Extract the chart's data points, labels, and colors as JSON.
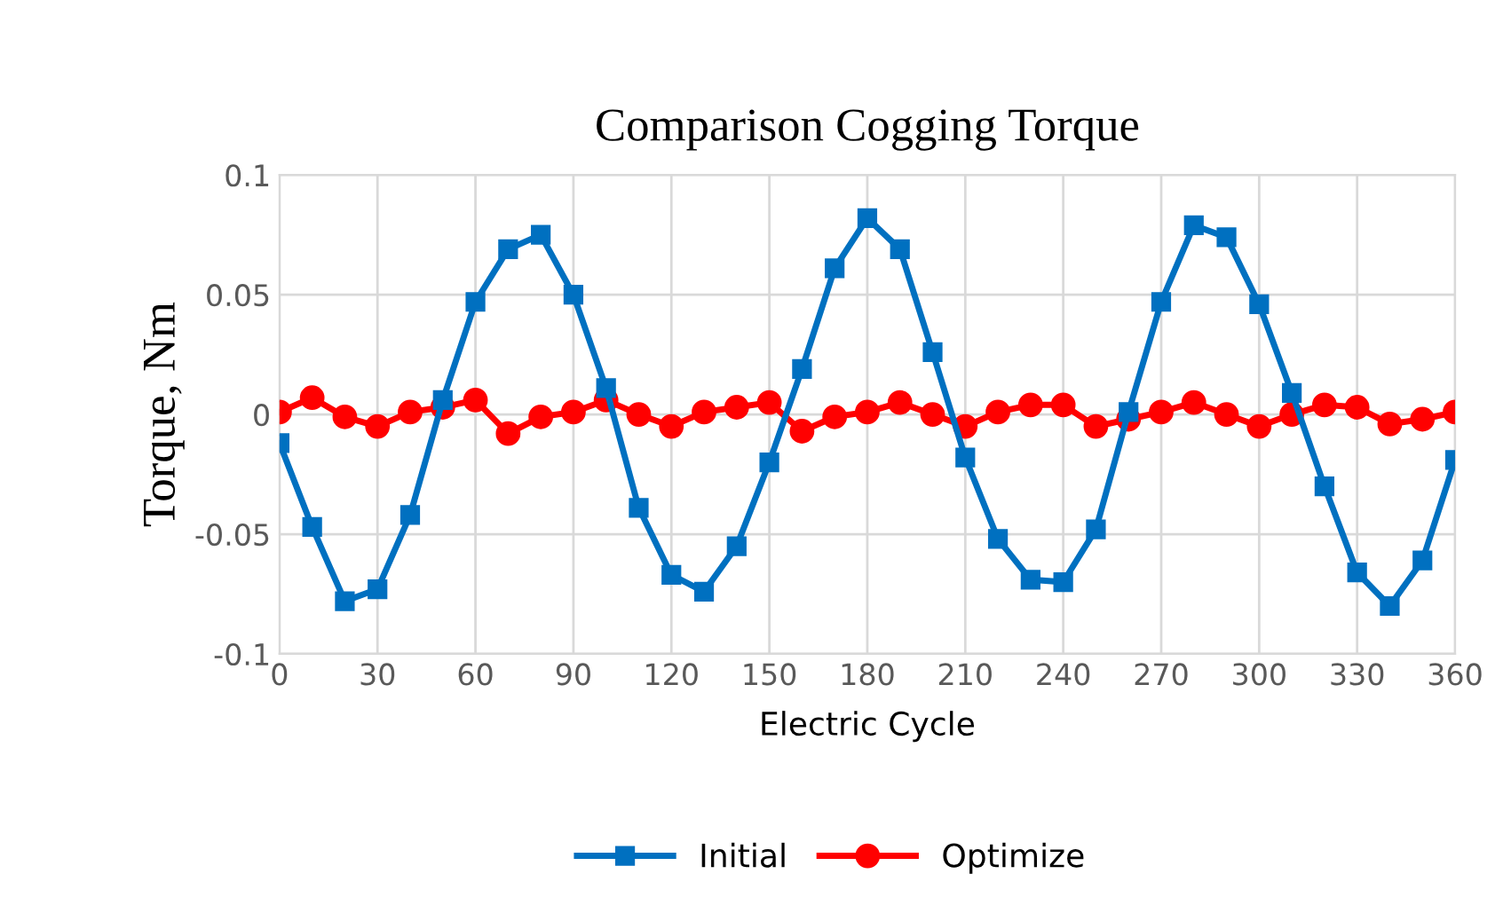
{
  "chart_data": {
    "type": "line",
    "title": "Comparison Cogging Torque",
    "xlabel": "Electric Cycle",
    "ylabel": "Torque, Nm",
    "x": [
      0,
      10,
      20,
      30,
      40,
      50,
      60,
      70,
      80,
      90,
      100,
      110,
      120,
      130,
      140,
      150,
      160,
      170,
      180,
      190,
      200,
      210,
      220,
      230,
      240,
      250,
      260,
      270,
      280,
      290,
      300,
      310,
      320,
      330,
      340,
      350,
      360
    ],
    "series": [
      {
        "name": "Initial",
        "color": "#0070c0",
        "marker": "square",
        "values": [
          -0.012,
          -0.047,
          -0.078,
          -0.073,
          -0.042,
          0.006,
          0.047,
          0.069,
          0.075,
          0.05,
          0.011,
          -0.039,
          -0.067,
          -0.074,
          -0.055,
          -0.02,
          0.019,
          0.061,
          0.082,
          0.069,
          0.026,
          -0.018,
          -0.052,
          -0.069,
          -0.07,
          -0.048,
          0.001,
          0.047,
          0.079,
          0.074,
          0.046,
          0.009,
          -0.03,
          -0.066,
          -0.08,
          -0.061,
          -0.019
        ]
      },
      {
        "name": "Optimize",
        "color": "#ff0000",
        "marker": "circle",
        "values": [
          0.001,
          0.007,
          -0.001,
          -0.005,
          0.001,
          0.003,
          0.006,
          -0.008,
          -0.001,
          0.001,
          0.006,
          0.0,
          -0.005,
          0.001,
          0.003,
          0.005,
          -0.007,
          -0.001,
          0.001,
          0.005,
          0.0,
          -0.005,
          0.001,
          0.004,
          0.004,
          -0.005,
          -0.002,
          0.001,
          0.005,
          0.0,
          -0.005,
          0.0,
          0.004,
          0.003,
          -0.004,
          -0.002,
          0.001
        ]
      }
    ],
    "xlim": [
      0,
      360
    ],
    "xticks": [
      0,
      30,
      60,
      90,
      120,
      150,
      180,
      210,
      240,
      270,
      300,
      330,
      360
    ],
    "ylim": [
      -0.1,
      0.1
    ],
    "yticks": [
      -0.1,
      -0.05,
      0,
      0.05,
      0.1
    ],
    "grid": true,
    "legend": "bottom",
    "line_style": "solid"
  }
}
